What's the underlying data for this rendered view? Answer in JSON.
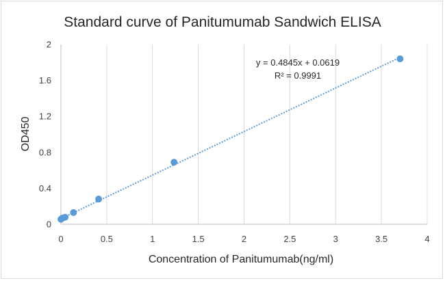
{
  "chart_data": {
    "type": "scatter",
    "title": "Standard curve of Panitumumab Sandwich ELISA",
    "xlabel": "Concentration of Panitumumab(ng/ml)",
    "ylabel": "OD450",
    "xlim": [
      0,
      4
    ],
    "ylim": [
      0,
      2
    ],
    "x_ticks": [
      "0",
      "0.5",
      "1",
      "1.5",
      "2",
      "2.5",
      "3",
      "3.5",
      "4"
    ],
    "y_ticks": [
      "0",
      "0.4",
      "0.8",
      "1.2",
      "1.6",
      "2"
    ],
    "grid": {
      "vertical": true,
      "horizontal": false
    },
    "series": [
      {
        "x": [
          0.0,
          0.015,
          0.046,
          0.137,
          0.412,
          1.235,
          3.704
        ],
        "y": [
          0.055,
          0.068,
          0.078,
          0.13,
          0.28,
          0.69,
          1.84
        ]
      }
    ],
    "trendline": {
      "type": "linear",
      "slope": 0.4845,
      "intercept": 0.0619,
      "equation": "y = 0.4845x + 0.0619",
      "r_squared": "R² = 0.9991"
    },
    "colors": {
      "marker": "#5b9bd5",
      "trendline": "#5b9bd5",
      "grid": "#d9d9d9"
    }
  }
}
